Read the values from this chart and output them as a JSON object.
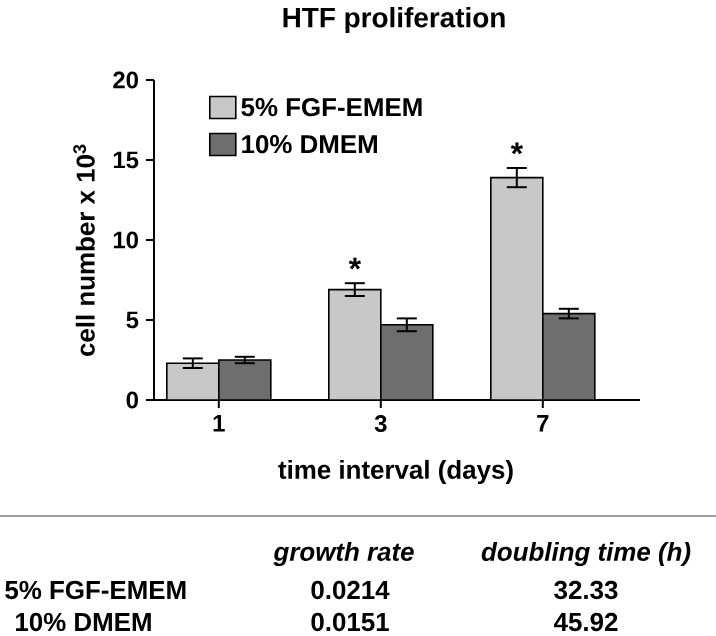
{
  "chart_data": {
    "type": "bar",
    "title": "HTF proliferation",
    "xlabel": "time interval (days)",
    "ylabel": "cell number x 10$^{3}$",
    "categories": [
      "1",
      "3",
      "7"
    ],
    "series": [
      {
        "name": "5% FGF-EMEM",
        "color": "#c8c8c8",
        "values": [
          2.3,
          6.9,
          13.9
        ],
        "errors": [
          0.3,
          0.4,
          0.6
        ]
      },
      {
        "name": "10% DMEM",
        "color": "#6e6e6e",
        "values": [
          2.5,
          4.7,
          5.4
        ],
        "errors": [
          0.2,
          0.4,
          0.3
        ]
      }
    ],
    "ylim": [
      0,
      20
    ],
    "yticks": [
      0,
      5,
      10,
      15,
      20
    ],
    "legend": "top left",
    "annotations": [
      "*",
      "*",
      "growth rate",
      "doubling time (h)",
      "5% FGF-EMEM",
      "0.0214",
      "32.33",
      "10% DMEM",
      "0.0151",
      "45.92"
    ]
  }
}
